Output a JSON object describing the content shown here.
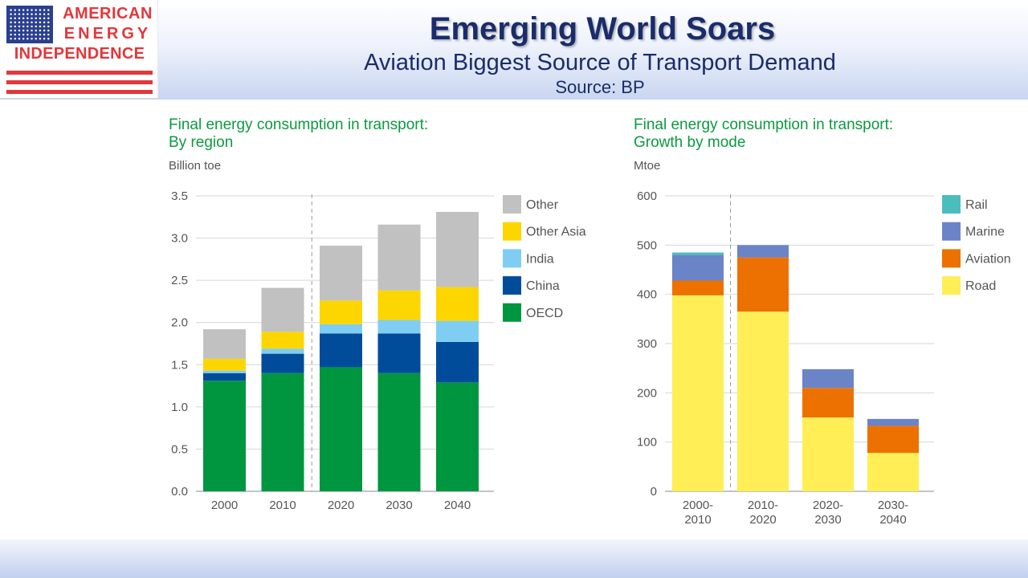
{
  "logo": {
    "line1": "AMERICAN",
    "line2": "ENERGY",
    "line3": "INDEPENDENCE"
  },
  "header": {
    "title": "Emerging World Soars",
    "subtitle": "Aviation Biggest Source of Transport Demand",
    "source": "Source: BP"
  },
  "colors": {
    "OECD": "#00963f",
    "China": "#004c9a",
    "India": "#7fcdf3",
    "Other Asia": "#fdd600",
    "Other": "#c1c1c1",
    "Road": "#ffee55",
    "Aviation": "#ec7100",
    "Marine": "#6b83c7",
    "Rail": "#4cbdbd"
  },
  "chart_data": [
    {
      "type": "bar",
      "stacked": true,
      "title_line1": "Final energy consumption in transport:",
      "title_line2": "By region",
      "ylabel": "Billion toe",
      "categories": [
        "2000",
        "2010",
        "2020",
        "2030",
        "2040"
      ],
      "series": [
        {
          "name": "OECD",
          "values": [
            1.31,
            1.4,
            1.47,
            1.4,
            1.29
          ]
        },
        {
          "name": "China",
          "values": [
            0.09,
            0.23,
            0.4,
            0.47,
            0.48
          ]
        },
        {
          "name": "India",
          "values": [
            0.03,
            0.06,
            0.11,
            0.16,
            0.25
          ]
        },
        {
          "name": "Other Asia",
          "values": [
            0.14,
            0.2,
            0.28,
            0.35,
            0.4
          ]
        },
        {
          "name": "Other",
          "values": [
            0.35,
            0.52,
            0.65,
            0.78,
            0.89
          ]
        }
      ],
      "legend_order": [
        "Other",
        "Other Asia",
        "India",
        "China",
        "OECD"
      ],
      "ylim": [
        0,
        3.5
      ],
      "yticks": [
        "0.0",
        "0.5",
        "1.0",
        "1.5",
        "2.0",
        "2.5",
        "3.0",
        "3.5"
      ],
      "projection_divider_after_index": 1,
      "grid": true,
      "legend_position": "right"
    },
    {
      "type": "bar",
      "stacked": true,
      "title_line1": "Final energy consumption in transport:",
      "title_line2": "Growth by mode",
      "ylabel": "Mtoe",
      "categories": [
        [
          "2000-",
          "2010"
        ],
        [
          "2010-",
          "2020"
        ],
        [
          "2020-",
          "2030"
        ],
        [
          "2030-",
          "2040"
        ]
      ],
      "series": [
        {
          "name": "Road",
          "values": [
            398,
            365,
            150,
            78
          ]
        },
        {
          "name": "Aviation",
          "values": [
            30,
            110,
            60,
            55
          ]
        },
        {
          "name": "Marine",
          "values": [
            52,
            25,
            38,
            14
          ]
        },
        {
          "name": "Rail",
          "values": [
            5,
            0,
            0,
            0
          ]
        }
      ],
      "legend_order": [
        "Rail",
        "Marine",
        "Aviation",
        "Road"
      ],
      "ylim": [
        0,
        600
      ],
      "yticks": [
        "0",
        "100",
        "200",
        "300",
        "400",
        "500",
        "600"
      ],
      "projection_divider_after_index": 0,
      "grid": true,
      "legend_position": "right"
    }
  ]
}
